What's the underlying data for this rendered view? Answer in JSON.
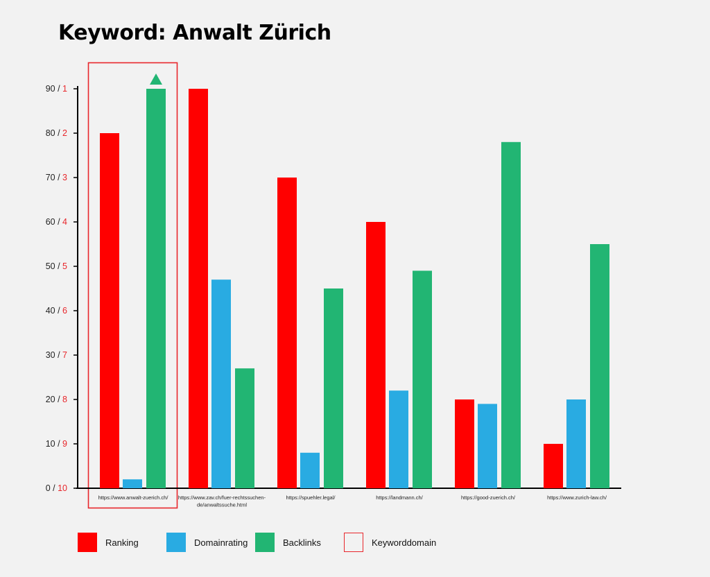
{
  "colors": {
    "ranking": "#ff0000",
    "domainrating": "#29abe2",
    "backlinks": "#22b573",
    "highlight": "#e8262b",
    "axis": "#000000",
    "tick_rank": "#e8262b",
    "background": "#f2f2f2"
  },
  "legend": [
    {
      "name": "Ranking",
      "color": "#ff0000",
      "style": "fill"
    },
    {
      "name": "Domainrating",
      "color": "#29abe2",
      "style": "fill"
    },
    {
      "name": "Backlinks",
      "color": "#22b573",
      "style": "fill"
    },
    {
      "name": "Keyworddomain",
      "color": "#e8262b",
      "style": "outline"
    }
  ],
  "chart_data": {
    "type": "bar",
    "title": "Keyword: Anwalt Zürich",
    "xlabel": "",
    "ylabel": "",
    "ylim": [
      0,
      90
    ],
    "y_ticks": [
      {
        "value": 0,
        "left": "0",
        "right": "10"
      },
      {
        "value": 10,
        "left": "10",
        "right": "9"
      },
      {
        "value": 20,
        "left": "20",
        "right": "8"
      },
      {
        "value": 30,
        "left": "30",
        "right": "7"
      },
      {
        "value": 40,
        "left": "40",
        "right": "6"
      },
      {
        "value": 50,
        "left": "50",
        "right": "5"
      },
      {
        "value": 60,
        "left": "60",
        "right": "4"
      },
      {
        "value": 70,
        "left": "70",
        "right": "3"
      },
      {
        "value": 80,
        "left": "80",
        "right": "2"
      },
      {
        "value": 90,
        "left": "90",
        "right": "1"
      }
    ],
    "categories": [
      [
        "https://www.anwalt-zuerich.ch/"
      ],
      [
        "https://www.zav.ch/fuer-rechtssuchen-",
        "de/anwaltssuche.html"
      ],
      [
        "https://spuehler.legal/"
      ],
      [
        "https://landmann.ch/"
      ],
      [
        "https://good-zuerich.ch/"
      ],
      [
        "https://www.zurich-law.ch/"
      ]
    ],
    "series": [
      {
        "name": "Ranking",
        "values": [
          80,
          90,
          70,
          60,
          20,
          10
        ]
      },
      {
        "name": "Domainrating",
        "values": [
          2,
          47,
          8,
          22,
          19,
          20
        ]
      },
      {
        "name": "Backlinks",
        "values": [
          90,
          27,
          45,
          49,
          78,
          55
        ]
      }
    ],
    "highlight": {
      "category_index": 0,
      "legend": "Keyworddomain",
      "marker": "triangle-up",
      "marker_series": "Backlinks"
    },
    "grid": false,
    "legend_position": "bottom"
  }
}
